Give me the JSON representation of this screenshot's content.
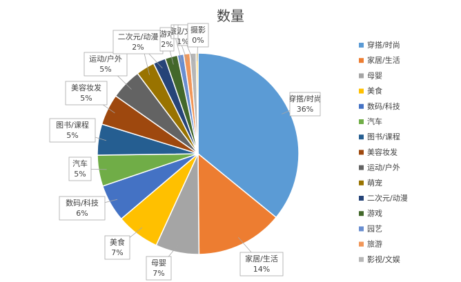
{
  "chart_data": {
    "type": "pie",
    "title": "数量",
    "legend_position": "right",
    "slices": [
      {
        "name": "穿搭/时尚",
        "value": 36,
        "label": "36%",
        "color": "#5B9BD5"
      },
      {
        "name": "家居/生活",
        "value": 14,
        "label": "14%",
        "color": "#ED7D31"
      },
      {
        "name": "母婴",
        "value": 7,
        "label": "7%",
        "color": "#A5A5A5"
      },
      {
        "name": "美食",
        "value": 7,
        "label": "7%",
        "color": "#FFC000"
      },
      {
        "name": "数码/科技",
        "value": 6,
        "label": "6%",
        "color": "#4472C4"
      },
      {
        "name": "汽车",
        "value": 5,
        "label": "5%",
        "color": "#70AD47"
      },
      {
        "name": "图书/课程",
        "value": 5,
        "label": "5%",
        "color": "#255E91"
      },
      {
        "name": "美容妆发",
        "value": 5,
        "label": "5%",
        "color": "#9E480E"
      },
      {
        "name": "运动/户外",
        "value": 5,
        "label": "5%",
        "color": "#636363"
      },
      {
        "name": "萌宠",
        "value": 3,
        "label": "3%",
        "color": "#997300"
      },
      {
        "name": "二次元/动漫",
        "value": 2,
        "label": "2%",
        "color": "#264478"
      },
      {
        "name": "游戏",
        "value": 2,
        "label": "2%",
        "color": "#43682B"
      },
      {
        "name": "园艺",
        "value": 1,
        "label": "1%",
        "color": "#698ED0"
      },
      {
        "name": "旅游",
        "value": 1,
        "label": "1%",
        "color": "#F1975A"
      },
      {
        "name": "影视/文娱",
        "value": 1,
        "label": "1%",
        "color": "#B7B7B7"
      },
      {
        "name": "摄影",
        "value": 0.3,
        "label": "0%",
        "color": "#FFCD33"
      }
    ]
  }
}
